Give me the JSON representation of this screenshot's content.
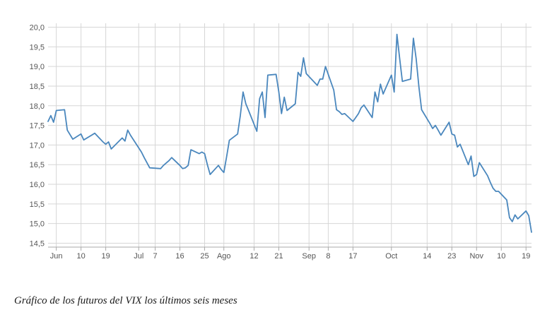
{
  "caption": "Gráfico de los futuros del VIX los últimos seis meses",
  "chart_data": {
    "type": "line",
    "title": "",
    "xlabel": "",
    "ylabel": "",
    "grid": true,
    "line_color": "#4a87bd",
    "grid_color": "#d6d6d6",
    "axis_color": "#a9a9a9",
    "ylim": [
      14.4,
      20.1
    ],
    "yticks": [
      "14,5",
      "15,0",
      "15,5",
      "16,0",
      "16,5",
      "17,0",
      "17,5",
      "18,0",
      "18,5",
      "19,0",
      "19,5",
      "20,0"
    ],
    "ytick_values": [
      14.5,
      15.0,
      15.5,
      16.0,
      16.5,
      17.0,
      17.5,
      18.0,
      18.5,
      19.0,
      19.5,
      20.0
    ],
    "xlim": [
      "2018-05-29",
      "2018-11-21"
    ],
    "xticks": [
      {
        "label": "Jun",
        "date": "2018-06-01"
      },
      {
        "label": "10",
        "date": "2018-06-10"
      },
      {
        "label": "19",
        "date": "2018-06-19"
      },
      {
        "label": "Jul",
        "date": "2018-07-01"
      },
      {
        "label": "7",
        "date": "2018-07-07"
      },
      {
        "label": "16",
        "date": "2018-07-16"
      },
      {
        "label": "25",
        "date": "2018-07-25"
      },
      {
        "label": "Ago",
        "date": "2018-08-01"
      },
      {
        "label": "12",
        "date": "2018-08-12"
      },
      {
        "label": "21",
        "date": "2018-08-21"
      },
      {
        "label": "Sep",
        "date": "2018-09-01"
      },
      {
        "label": "8",
        "date": "2018-09-08"
      },
      {
        "label": "17",
        "date": "2018-09-17"
      },
      {
        "label": "Oct",
        "date": "2018-10-01"
      },
      {
        "label": "14",
        "date": "2018-10-14"
      },
      {
        "label": "23",
        "date": "2018-10-23"
      },
      {
        "label": "Nov",
        "date": "2018-11-01"
      },
      {
        "label": "10",
        "date": "2018-11-10"
      },
      {
        "label": "19",
        "date": "2018-11-19"
      }
    ],
    "series": [
      {
        "x": [
          "2018-05-29",
          "2018-05-30",
          "2018-05-31",
          "2018-06-01",
          "2018-06-04",
          "2018-06-05",
          "2018-06-07",
          "2018-06-10",
          "2018-06-11",
          "2018-06-15",
          "2018-06-18",
          "2018-06-19",
          "2018-06-20",
          "2018-06-21",
          "2018-06-25",
          "2018-06-26",
          "2018-06-27",
          "2018-06-28",
          "2018-07-02",
          "2018-07-03",
          "2018-07-05",
          "2018-07-09",
          "2018-07-10",
          "2018-07-12",
          "2018-07-13",
          "2018-07-16",
          "2018-07-17",
          "2018-07-18",
          "2018-07-19",
          "2018-07-20",
          "2018-07-23",
          "2018-07-24",
          "2018-07-25",
          "2018-07-26",
          "2018-07-27",
          "2018-07-30",
          "2018-07-31",
          "2018-08-01",
          "2018-08-02",
          "2018-08-03",
          "2018-08-06",
          "2018-08-07",
          "2018-08-08",
          "2018-08-09",
          "2018-08-10",
          "2018-08-13",
          "2018-08-14",
          "2018-08-15",
          "2018-08-16",
          "2018-08-17",
          "2018-08-20",
          "2018-08-21",
          "2018-08-22",
          "2018-08-23",
          "2018-08-24",
          "2018-08-27",
          "2018-08-28",
          "2018-08-29",
          "2018-08-30",
          "2018-08-31",
          "2018-09-04",
          "2018-09-05",
          "2018-09-06",
          "2018-09-07",
          "2018-09-10",
          "2018-09-11",
          "2018-09-12",
          "2018-09-13",
          "2018-09-14",
          "2018-09-17",
          "2018-09-18",
          "2018-09-19",
          "2018-09-20",
          "2018-09-21",
          "2018-09-24",
          "2018-09-25",
          "2018-09-26",
          "2018-09-27",
          "2018-09-28",
          "2018-10-01",
          "2018-10-02",
          "2018-10-03",
          "2018-10-04",
          "2018-10-05",
          "2018-10-08",
          "2018-10-09",
          "2018-10-10",
          "2018-10-11",
          "2018-10-12",
          "2018-10-15",
          "2018-10-16",
          "2018-10-17",
          "2018-10-18",
          "2018-10-19",
          "2018-10-22",
          "2018-10-23",
          "2018-10-24",
          "2018-10-25",
          "2018-10-26",
          "2018-10-29",
          "2018-10-30",
          "2018-10-31",
          "2018-11-01",
          "2018-11-02",
          "2018-11-05",
          "2018-11-06",
          "2018-11-07",
          "2018-11-08",
          "2018-11-09",
          "2018-11-12",
          "2018-11-13",
          "2018-11-14",
          "2018-11-15",
          "2018-11-16",
          "2018-11-19",
          "2018-11-20",
          "2018-11-21"
        ],
        "values": [
          17.6,
          17.75,
          17.58,
          17.88,
          17.9,
          17.38,
          17.15,
          17.28,
          17.13,
          17.3,
          17.08,
          17.02,
          17.08,
          16.9,
          17.18,
          17.1,
          17.38,
          17.25,
          16.82,
          16.68,
          16.42,
          16.4,
          16.48,
          16.6,
          16.68,
          16.48,
          16.4,
          16.42,
          16.48,
          16.88,
          16.78,
          16.82,
          16.78,
          16.5,
          16.25,
          16.48,
          16.38,
          16.3,
          16.7,
          17.12,
          17.28,
          17.75,
          18.35,
          18.05,
          17.88,
          17.35,
          18.18,
          18.35,
          17.7,
          18.78,
          18.8,
          18.35,
          17.8,
          18.22,
          17.88,
          18.05,
          18.85,
          18.75,
          19.22,
          18.82,
          18.52,
          18.68,
          18.68,
          19.0,
          18.4,
          17.9,
          17.85,
          17.78,
          17.8,
          17.6,
          17.7,
          17.8,
          17.95,
          18.02,
          17.7,
          18.35,
          18.1,
          18.55,
          18.3,
          18.78,
          18.35,
          19.82,
          19.2,
          18.62,
          18.68,
          19.72,
          19.2,
          18.48,
          17.9,
          17.55,
          17.42,
          17.5,
          17.38,
          17.25,
          17.58,
          17.28,
          17.25,
          16.95,
          17.02,
          16.5,
          16.72,
          16.2,
          16.25,
          16.55,
          16.22,
          16.05,
          15.9,
          15.82,
          15.82,
          15.6,
          15.15,
          15.05,
          15.22,
          15.12,
          15.32,
          15.2,
          14.78
        ]
      }
    ]
  }
}
